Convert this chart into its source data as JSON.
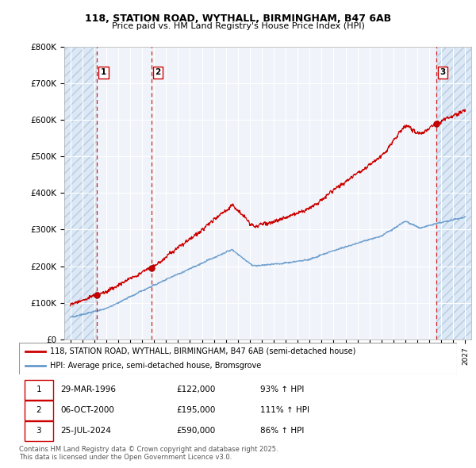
{
  "title_line1": "118, STATION ROAD, WYTHALL, BIRMINGHAM, B47 6AB",
  "title_line2": "Price paid vs. HM Land Registry's House Price Index (HPI)",
  "fig_bg_color": "#ffffff",
  "plot_bg_color": "#f0f4fa",
  "hatch_fill_color": "#dce8f5",
  "red_line_color": "#cc0000",
  "blue_line_color": "#6699cc",
  "grid_color": "#ffffff",
  "ytick_labels": [
    "£0",
    "£100K",
    "£200K",
    "£300K",
    "£400K",
    "£500K",
    "£600K",
    "£700K",
    "£800K"
  ],
  "yticks": [
    0,
    100000,
    200000,
    300000,
    400000,
    500000,
    600000,
    700000,
    800000
  ],
  "xmin": 1993.5,
  "xmax": 2027.5,
  "ymin": 0,
  "ymax": 800000,
  "sale_dates_num": [
    1996.24,
    2000.77,
    2024.56
  ],
  "sale_prices": [
    122000,
    195000,
    590000
  ],
  "sale_labels": [
    "1",
    "2",
    "3"
  ],
  "legend_red": "118, STATION ROAD, WYTHALL, BIRMINGHAM, B47 6AB (semi-detached house)",
  "legend_blue": "HPI: Average price, semi-detached house, Bromsgrove",
  "table_rows": [
    [
      "1",
      "29-MAR-1996",
      "£122,000",
      "93% ↑ HPI"
    ],
    [
      "2",
      "06-OCT-2000",
      "£195,000",
      "111% ↑ HPI"
    ],
    [
      "3",
      "25-JUL-2024",
      "£590,000",
      "86% ↑ HPI"
    ]
  ],
  "footer": "Contains HM Land Registry data © Crown copyright and database right 2025.\nThis data is licensed under the Open Government Licence v3.0."
}
